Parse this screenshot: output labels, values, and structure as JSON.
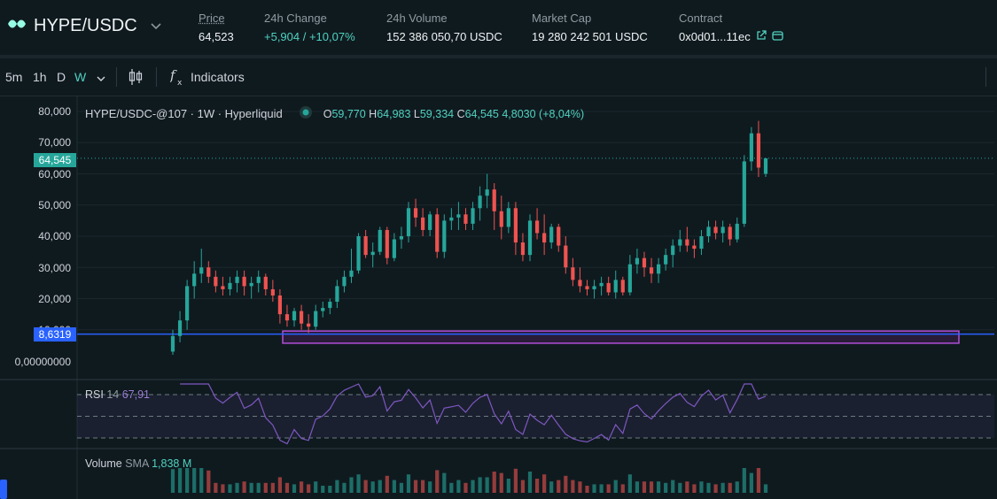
{
  "header": {
    "pair": "HYPE/USDC",
    "price_label": "Price",
    "price": "64,523",
    "change_label": "24h Change",
    "change": "+5,904 / +10,07%",
    "volume_label": "24h Volume",
    "volume": "152 386 050,70 USDC",
    "mcap_label": "Market Cap",
    "mcap": "19 280 242 501 USDC",
    "contract_label": "Contract",
    "contract": "0x0d01...11ec"
  },
  "toolbar": {
    "timeframes": [
      "5m",
      "1h",
      "D",
      "W"
    ],
    "active_timeframe": "W",
    "indicators_label": "Indicators"
  },
  "legend": {
    "title": "HYPE/USDC-@107 · 1W · Hyperliquid",
    "o_label": "O",
    "o": "59,770",
    "h_label": "H",
    "h": "64,983",
    "l_label": "L",
    "l": "59,334",
    "c_label": "C",
    "c": "64,545",
    "change": "4,8030 (+8,04%)"
  },
  "price_axis": {
    "ticks": [
      "80,000",
      "70,000",
      "60,000",
      "50,000",
      "40,000",
      "30,000",
      "20,000",
      "10,000",
      "0,00000000"
    ],
    "last_price_tag": "64,545",
    "line_tag": "8,6319"
  },
  "rsi": {
    "label": "RSI",
    "length": "14",
    "value": "67,91"
  },
  "volume": {
    "label": "Volume",
    "sma_label": "SMA",
    "sma_value": "1,838 M"
  },
  "colors": {
    "up": "#26a69a",
    "down": "#ef5350",
    "accent": "#50d2c1",
    "rsi": "#7e57c2",
    "line": "#2962ff",
    "box": "#9c27b0"
  },
  "chart_data": {
    "type": "candlestick",
    "title": "HYPE/USDC-@107 · 1W · Hyperliquid",
    "ylim": [
      0,
      85
    ],
    "ohlc": [
      [
        3,
        10,
        2,
        8
      ],
      [
        8,
        16,
        6,
        13
      ],
      [
        13,
        26,
        10,
        24
      ],
      [
        24,
        32,
        20,
        28
      ],
      [
        28,
        36,
        25,
        30
      ],
      [
        30,
        32,
        25,
        27
      ],
      [
        27,
        29,
        22,
        24
      ],
      [
        24,
        27,
        21,
        23
      ],
      [
        23,
        27,
        21,
        25
      ],
      [
        25,
        29,
        22,
        27
      ],
      [
        27,
        29,
        21,
        24
      ],
      [
        24,
        27,
        20,
        25
      ],
      [
        25,
        29,
        22,
        27
      ],
      [
        27,
        28,
        21,
        23
      ],
      [
        23,
        26,
        19,
        21
      ],
      [
        21,
        23,
        12,
        15
      ],
      [
        15,
        18,
        11,
        13
      ],
      [
        13,
        17,
        11,
        16
      ],
      [
        16,
        18,
        10,
        12
      ],
      [
        12,
        15,
        9,
        11
      ],
      [
        11,
        18,
        10,
        16
      ],
      [
        16,
        19,
        14,
        17
      ],
      [
        17,
        20,
        15,
        19
      ],
      [
        19,
        26,
        17,
        24
      ],
      [
        24,
        29,
        22,
        27
      ],
      [
        27,
        36,
        25,
        29
      ],
      [
        29,
        41,
        28,
        40
      ],
      [
        40,
        42,
        33,
        34
      ],
      [
        34,
        38,
        30,
        35
      ],
      [
        35,
        43,
        34,
        42
      ],
      [
        42,
        43,
        31,
        33
      ],
      [
        33,
        41,
        32,
        39
      ],
      [
        39,
        43,
        36,
        40
      ],
      [
        40,
        51,
        38,
        49
      ],
      [
        49,
        52,
        43,
        46
      ],
      [
        46,
        49,
        40,
        42
      ],
      [
        42,
        48,
        40,
        47
      ],
      [
        47,
        49,
        33,
        35
      ],
      [
        35,
        47,
        33,
        45
      ],
      [
        45,
        49,
        42,
        46
      ],
      [
        46,
        51,
        42,
        47
      ],
      [
        47,
        49,
        42,
        44
      ],
      [
        44,
        51,
        42,
        49
      ],
      [
        49,
        56,
        45,
        53
      ],
      [
        53,
        60,
        49,
        55
      ],
      [
        55,
        57,
        42,
        48
      ],
      [
        48,
        53,
        39,
        43
      ],
      [
        43,
        51,
        41,
        49
      ],
      [
        49,
        51,
        34,
        38
      ],
      [
        38,
        41,
        32,
        34
      ],
      [
        34,
        47,
        32,
        45
      ],
      [
        45,
        49,
        39,
        41
      ],
      [
        41,
        47,
        34,
        38
      ],
      [
        38,
        44,
        36,
        43
      ],
      [
        43,
        44,
        35,
        37
      ],
      [
        37,
        40,
        28,
        30
      ],
      [
        30,
        33,
        24,
        26
      ],
      [
        26,
        30,
        22,
        24
      ],
      [
        24,
        26,
        21,
        23
      ],
      [
        23,
        26,
        20,
        24
      ],
      [
        24,
        27,
        21,
        25
      ],
      [
        25,
        27,
        21,
        22
      ],
      [
        22,
        29,
        20,
        26
      ],
      [
        26,
        27,
        21,
        22
      ],
      [
        22,
        34,
        21,
        31
      ],
      [
        31,
        36,
        28,
        33
      ],
      [
        33,
        35,
        27,
        30
      ],
      [
        30,
        33,
        25,
        28
      ],
      [
        28,
        33,
        25,
        31
      ],
      [
        31,
        36,
        29,
        34
      ],
      [
        34,
        39,
        30,
        37
      ],
      [
        37,
        42,
        35,
        39
      ],
      [
        39,
        43,
        35,
        37
      ],
      [
        37,
        39,
        33,
        36
      ],
      [
        36,
        42,
        34,
        40
      ],
      [
        40,
        45,
        38,
        43
      ],
      [
        43,
        45,
        39,
        41
      ],
      [
        41,
        45,
        38,
        43
      ],
      [
        43,
        44,
        37,
        39
      ],
      [
        39,
        46,
        38,
        44
      ],
      [
        44,
        66,
        43,
        64
      ],
      [
        64,
        75,
        61,
        73
      ],
      [
        73,
        77,
        59,
        62
      ],
      [
        60,
        65,
        59,
        65
      ]
    ],
    "horizontal_line": 8.6319,
    "zone": [
      5.7,
      9.6
    ],
    "rsi_levels": [
      70,
      50,
      30
    ]
  }
}
